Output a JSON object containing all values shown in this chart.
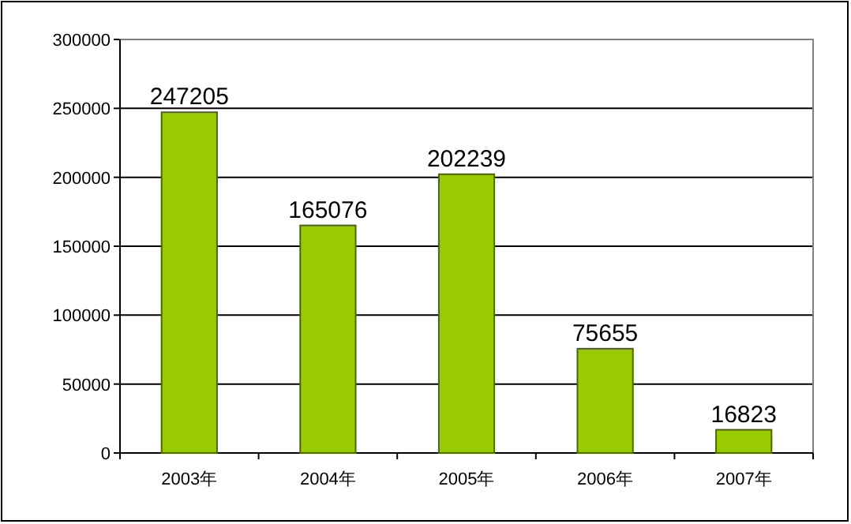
{
  "chart_data": {
    "type": "bar",
    "categories": [
      "2003年",
      "2004年",
      "2005年",
      "2006年",
      "2007年"
    ],
    "values": [
      247205,
      165076,
      202239,
      75655,
      16823
    ],
    "color": "#99cc00",
    "ylim": [
      0,
      300000
    ],
    "yticks": [
      0,
      50000,
      100000,
      150000,
      200000,
      250000,
      300000
    ],
    "grid": "y",
    "data_labels": true
  }
}
